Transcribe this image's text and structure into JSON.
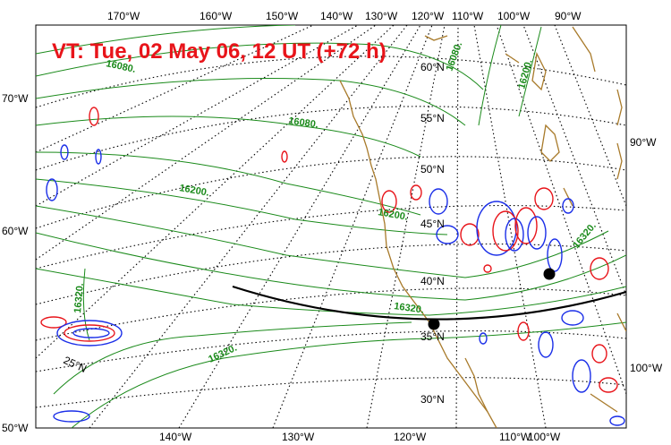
{
  "title": "VT:  Tue, 02 May 06, 12 UT (+72 h)",
  "lon_labels_top": [
    "170°W",
    "160°W",
    "150°W",
    "140°W",
    "130°W",
    "120°W",
    "110°W",
    "100°W",
    "90°W"
  ],
  "lon_labels_bottom": [
    "140°W",
    "130°W",
    "120°W",
    "110°W",
    "100°W"
  ],
  "left_labels": [
    "70°W",
    "60°W",
    "50°W"
  ],
  "right_labels": [
    "90°W",
    "100°W"
  ],
  "lat_labels": [
    "60°N",
    "55°N",
    "50°N",
    "45°N",
    "40°N",
    "35°N",
    "30°N",
    "25°N"
  ],
  "contour_labels": [
    "16080.",
    "16080.",
    "16080.",
    "16200.",
    "16200.",
    "16200.",
    "16320.",
    "16320.",
    "16320.",
    "16320."
  ],
  "colors": {
    "title": "#e8141a",
    "height_contours": "#1a8a1a",
    "coastline": "#a87a2a",
    "positive_anomaly": "#e8141a",
    "negative_anomaly": "#1a2ee8",
    "cross_section": "#000000",
    "graticule": "#000000"
  },
  "cross_section": {
    "start_endpoint": "black-dot",
    "end_endpoint": "black-dot"
  }
}
